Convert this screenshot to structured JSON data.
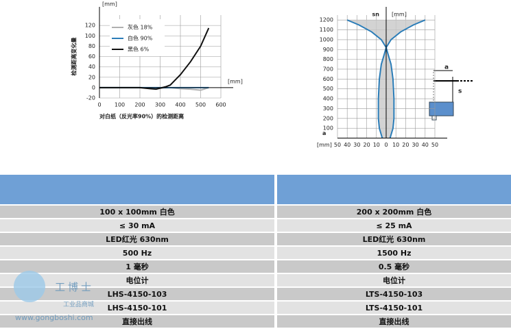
{
  "chart_data": [
    {
      "type": "line",
      "x_label": "对白纸（反光率90%）的检测距离",
      "y_label": "检测距离变化量",
      "x_unit": "[mm]",
      "y_unit": "[mm]",
      "xlim": [
        0,
        600
      ],
      "xticks": [
        0,
        100,
        200,
        300,
        400,
        500,
        600
      ],
      "ylim": [
        -20,
        140
      ],
      "yticks": [
        -20,
        0,
        20,
        40,
        60,
        80,
        100,
        120
      ],
      "grid": true,
      "legend": "upper left",
      "series": [
        {
          "name": "灰色 18%",
          "color": "#b0b0b0",
          "x": [
            0,
            100,
            200,
            280,
            300,
            350,
            400,
            450,
            500,
            540
          ],
          "values": [
            0,
            0,
            0,
            -1,
            -1,
            0,
            -2,
            -3,
            -5,
            0
          ]
        },
        {
          "name": "白色 90%",
          "color": "#2b7db8",
          "x": [
            0,
            100,
            200,
            300,
            400,
            500,
            540
          ],
          "values": [
            0,
            0,
            0,
            0,
            0,
            0,
            0
          ]
        },
        {
          "name": "黑色 6%",
          "color": "#111111",
          "x": [
            0,
            100,
            200,
            250,
            280,
            300,
            330,
            350,
            400,
            450,
            500,
            540
          ],
          "values": [
            0,
            0,
            0,
            -2,
            -3,
            -1,
            2,
            5,
            25,
            50,
            80,
            115
          ]
        }
      ]
    },
    {
      "type": "line",
      "x_label": "a",
      "y_label": "sn",
      "x_unit": "[mm]",
      "y_unit": "[mm]",
      "xlim": [
        -50,
        50
      ],
      "xticks": [
        {
          "value": -50,
          "label": "50"
        },
        {
          "value": -40,
          "label": "40"
        },
        {
          "value": -30,
          "label": "30"
        },
        {
          "value": -20,
          "label": "20"
        },
        {
          "value": -10,
          "label": "10"
        },
        0,
        10,
        20,
        30,
        40,
        50
      ],
      "ylim": [
        0,
        1250
      ],
      "yticks": [
        100,
        200,
        300,
        400,
        500,
        600,
        700,
        800,
        900,
        1000,
        1100,
        1200
      ],
      "grid": true,
      "fill": true,
      "series": [
        {
          "color": "#2b7db8",
          "x": [
            4,
            7,
            8,
            8,
            7,
            5,
            2,
            0,
            -5,
            -15,
            -28,
            -40
          ],
          "values": [
            0,
            100,
            200,
            400,
            600,
            750,
            850,
            920,
            1000,
            1080,
            1150,
            1200
          ]
        },
        {
          "color": "#2b7db8",
          "x": [
            -4,
            -7,
            -8,
            -8,
            -7,
            -5,
            -2,
            0,
            5,
            15,
            28,
            40
          ],
          "values": [
            0,
            100,
            200,
            400,
            600,
            750,
            850,
            920,
            1000,
            1080,
            1150,
            1200
          ]
        }
      ]
    }
  ],
  "diagram": {
    "labels": [
      "a",
      "s"
    ]
  },
  "table": {
    "rows": [
      [
        "100 x 100mm 白色",
        "200 x 200mm 白色"
      ],
      [
        "≤ 30 mA",
        "≤ 25 mA"
      ],
      [
        "LED红光 630nm",
        "LED红光 630nm"
      ],
      [
        "500 Hz",
        "1500 Hz"
      ],
      [
        "1 毫秒",
        "0.5 毫秒"
      ],
      [
        "电位计",
        "电位计"
      ],
      [
        "LHS-4150-103",
        "LTS-4150-103"
      ],
      [
        "LHS-4150-101",
        "LTS-4150-101"
      ],
      [
        "直接出线",
        "直接出线"
      ]
    ]
  },
  "watermark": {
    "brand": "工博士",
    "subtitle": "工业品商城",
    "url": "www.gongboshi.com"
  }
}
